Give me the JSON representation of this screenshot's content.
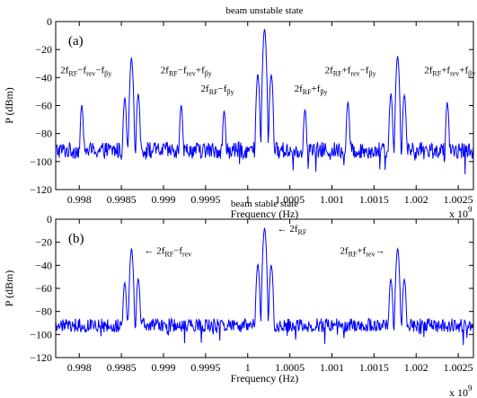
{
  "chart_data": [
    {
      "type": "line",
      "panel_label": "(a)",
      "title": "beam unstable state",
      "xlabel": "Frequency (Hz)",
      "x_multiplier": "x 10",
      "x_multiplier_exp": "9",
      "ylabel": "P (dBm)",
      "xlim": [
        0.99772,
        1.00268
      ],
      "ylim": [
        -120,
        0
      ],
      "xticks": [
        0.998,
        0.9985,
        0.999,
        0.9995,
        1,
        1.0005,
        1.001,
        1.0015,
        1.002,
        1.0025
      ],
      "xtick_labels": [
        "0.998",
        "0.9985",
        "0.999",
        "0.9995",
        "1",
        "1.0005",
        "1.001",
        "1.0015",
        "1.002",
        "1.0025"
      ],
      "yticks": [
        -120,
        -100,
        -80,
        -60,
        -40,
        -20,
        0
      ],
      "ytick_labels": [
        "−120",
        "−100",
        "−80",
        "−60",
        "−40",
        "−20",
        "0"
      ],
      "noise_floor": -92,
      "series_color": "#0000ff",
      "peaks": [
        {
          "x": 0.99803,
          "y": -60
        },
        {
          "x": 0.99854,
          "y": -55
        },
        {
          "x": 0.99862,
          "y": -26
        },
        {
          "x": 0.9987,
          "y": -52
        },
        {
          "x": 0.99921,
          "y": -60
        },
        {
          "x": 0.99972,
          "y": -64
        },
        {
          "x": 1.00012,
          "y": -38
        },
        {
          "x": 1.0002,
          "y": -6
        },
        {
          "x": 1.00028,
          "y": -38
        },
        {
          "x": 1.00068,
          "y": -63
        },
        {
          "x": 1.00119,
          "y": -58
        },
        {
          "x": 1.0017,
          "y": -52
        },
        {
          "x": 1.00178,
          "y": -25
        },
        {
          "x": 1.00186,
          "y": -52
        },
        {
          "x": 1.00237,
          "y": -58
        }
      ],
      "annotations": [
        {
          "x": 0.99808,
          "y": -37,
          "base": "2f",
          "sub1": "RF",
          "mid1": "−f",
          "sub2": "rev",
          "mid2": "−f",
          "sub3": "βy",
          "anchor": "middle"
        },
        {
          "x": 0.99927,
          "y": -37,
          "base": "2f",
          "sub1": "RF",
          "mid1": "−f",
          "sub2": "rev",
          "mid2": "+f",
          "sub3": "βy",
          "anchor": "middle"
        },
        {
          "x": 0.99964,
          "y": -50,
          "base": "2f",
          "sub1": "RF",
          "mid1": "−f",
          "sub2": "βy",
          "mid2": "",
          "sub3": "",
          "anchor": "middle"
        },
        {
          "x": 1.00075,
          "y": -50,
          "base": "2f",
          "sub1": "RF",
          "mid1": "+f",
          "sub2": "βy",
          "mid2": "",
          "sub3": "",
          "anchor": "middle"
        },
        {
          "x": 1.00122,
          "y": -37,
          "base": "2f",
          "sub1": "RF",
          "mid1": "+f",
          "sub2": "rev",
          "mid2": "−f",
          "sub3": "βy",
          "anchor": "middle"
        },
        {
          "x": 1.0024,
          "y": -37,
          "base": "2f",
          "sub1": "RF",
          "mid1": "+f",
          "sub2": "rev",
          "mid2": "+f",
          "sub3": "βy",
          "anchor": "middle"
        }
      ]
    },
    {
      "type": "line",
      "panel_label": "(b)",
      "title": "beam stable state",
      "xlabel": "Frequency (Hz)",
      "x_multiplier": "x 10",
      "x_multiplier_exp": "9",
      "ylabel": "P (dBm)",
      "xlim": [
        0.99772,
        1.00268
      ],
      "ylim": [
        -120,
        0
      ],
      "xticks": [
        0.998,
        0.9985,
        0.999,
        0.9995,
        1,
        1.0005,
        1.001,
        1.0015,
        1.002,
        1.0025
      ],
      "xtick_labels": [
        "0.998",
        "0.9985",
        "0.999",
        "0.9995",
        "1",
        "1.0005",
        "1.001",
        "1.0015",
        "1.002",
        "1.0025"
      ],
      "yticks": [
        -120,
        -100,
        -80,
        -60,
        -40,
        -20,
        0
      ],
      "ytick_labels": [
        "−120",
        "−100",
        "−80",
        "−60",
        "−40",
        "−20",
        "0"
      ],
      "noise_floor": -92,
      "series_color": "#0000ff",
      "peaks": [
        {
          "x": 0.99854,
          "y": -55
        },
        {
          "x": 0.99862,
          "y": -26
        },
        {
          "x": 0.9987,
          "y": -52
        },
        {
          "x": 1.00012,
          "y": -40
        },
        {
          "x": 1.0002,
          "y": -8
        },
        {
          "x": 1.00028,
          "y": -40
        },
        {
          "x": 1.0017,
          "y": -52
        },
        {
          "x": 1.00178,
          "y": -26
        },
        {
          "x": 1.00186,
          "y": -52
        }
      ],
      "annotations": [
        {
          "x": 0.99877,
          "y": -30,
          "base": "← 2f",
          "sub1": "RF",
          "mid1": "−f",
          "sub2": "rev",
          "mid2": "",
          "sub3": "",
          "anchor": "start"
        },
        {
          "x": 1.00035,
          "y": -11,
          "base": "← 2f",
          "sub1": "RF",
          "mid1": "",
          "sub2": "",
          "mid2": "",
          "sub3": "",
          "anchor": "start"
        },
        {
          "x": 1.00163,
          "y": -30,
          "base": "2f",
          "sub1": "RF",
          "mid1": "+f",
          "sub2": "rev",
          "mid2": "→",
          "sub3": "",
          "anchor": "end"
        }
      ]
    }
  ]
}
